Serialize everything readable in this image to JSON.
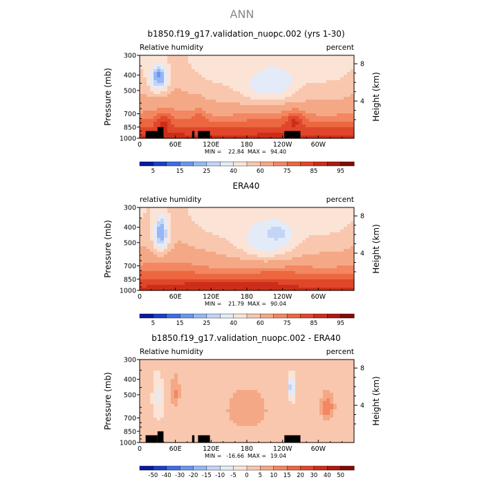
{
  "page_title": "ANN",
  "colors": {
    "land": "#000000",
    "frame": "#000000",
    "abs_scale": [
      "#0a1a9e",
      "#1a3fc8",
      "#3c6ee4",
      "#6a96ee",
      "#97b8f4",
      "#c3d5f7",
      "#e4ebf8",
      "#fbe3d6",
      "#f8c7ae",
      "#f5a886",
      "#f28762",
      "#ec6740",
      "#e0462a",
      "#cc2d18",
      "#ad1a0c",
      "#850a06"
    ],
    "diff_scale": [
      "#0a1a9e",
      "#1a3fc8",
      "#3c6ee4",
      "#6a96ee",
      "#97b8f4",
      "#c3d5f7",
      "#e4ebf8",
      "#fbe3d6",
      "#f8c7ae",
      "#f5a886",
      "#f28762",
      "#ec6740",
      "#e0462a",
      "#cc2d18",
      "#ad1a0c",
      "#850a06"
    ]
  },
  "chart_data": [
    {
      "type": "heatmap",
      "title": "b1850.f19_g17.validation_nuopc.002 (yrs 1-30)",
      "left_label": "Relative humidity",
      "right_label": "percent",
      "ylabel_left": "Pressure (mb)",
      "ylabel_right": "Height (km)",
      "x_ticks": [
        "0",
        "60E",
        "120E",
        "180",
        "120W",
        "60W"
      ],
      "x_range": [
        0,
        360
      ],
      "y_ticks": [
        "300",
        "400",
        "500",
        "700",
        "850",
        "1000"
      ],
      "y_range_mb": [
        300,
        1000
      ],
      "height_ticks": [
        "8",
        "4"
      ],
      "stats": {
        "min_label": "MIN =",
        "min_value": "22.84",
        "max_label": "MAX =",
        "max_value": "94.40"
      },
      "colorbar_labels": [
        "5",
        "15",
        "25",
        "40",
        "60",
        "75",
        "85",
        "95"
      ],
      "colorbar_levels": [
        5,
        10,
        15,
        20,
        25,
        30,
        40,
        50,
        60,
        70,
        75,
        80,
        85,
        90,
        95
      ],
      "land": [
        [
          10,
          30
        ],
        [
          30,
          40
        ],
        [
          88,
          92
        ],
        [
          98,
          118
        ],
        [
          243,
          270
        ]
      ],
      "land_tall": [
        [
          30,
          40
        ]
      ],
      "features": [
        {
          "lon": 32,
          "mb": 400,
          "rh": 8,
          "wlon": 6,
          "wmb": 40
        },
        {
          "lon": 32,
          "mb": 420,
          "rh": 20,
          "wlon": 16,
          "wmb": 90
        },
        {
          "lon": 225,
          "mb": 430,
          "rh": 22,
          "wlon": 28,
          "wmb": 70
        },
        {
          "lon": 215,
          "mb": 470,
          "rh": 35,
          "wlon": 50,
          "wmb": 130
        },
        {
          "lon": 40,
          "mb": 820,
          "rh": 88,
          "wlon": 12,
          "wmb": 90
        },
        {
          "lon": 260,
          "mb": 800,
          "rh": 86,
          "wlon": 14,
          "wmb": 110
        },
        {
          "lon": 100,
          "mb": 800,
          "rh": 80,
          "wlon": 10,
          "wmb": 150
        }
      ]
    },
    {
      "type": "heatmap",
      "title": "ERA40",
      "left_label": "relative humidity",
      "right_label": "percent",
      "ylabel_left": "Pressure (mb)",
      "ylabel_right": "Height (km)",
      "x_ticks": [
        "0",
        "60E",
        "120E",
        "180",
        "120W",
        "60W"
      ],
      "x_range": [
        0,
        360
      ],
      "y_ticks": [
        "300",
        "400",
        "500",
        "700",
        "850",
        "1000"
      ],
      "y_range_mb": [
        300,
        1000
      ],
      "height_ticks": [
        "8",
        "4"
      ],
      "stats": {
        "min_label": "MIN =",
        "min_value": "21.79",
        "max_label": "MAX =",
        "max_value": "90.04"
      },
      "colorbar_labels": [
        "5",
        "15",
        "25",
        "40",
        "60",
        "75",
        "85",
        "95"
      ],
      "colorbar_levels": [
        5,
        10,
        15,
        20,
        25,
        30,
        40,
        50,
        60,
        70,
        75,
        80,
        85,
        90,
        95
      ],
      "land": [],
      "land_tall": [],
      "features": [
        {
          "lon": 36,
          "mb": 420,
          "rh": 10,
          "wlon": 6,
          "wmb": 60
        },
        {
          "lon": 36,
          "mb": 450,
          "rh": 22,
          "wlon": 14,
          "wmb": 120
        },
        {
          "lon": 230,
          "mb": 440,
          "rh": 15,
          "wlon": 22,
          "wmb": 60
        },
        {
          "lon": 215,
          "mb": 480,
          "rh": 30,
          "wlon": 50,
          "wmb": 150
        },
        {
          "lon": 150,
          "mb": 900,
          "rh": 88,
          "wlon": 80,
          "wmb": 40
        }
      ]
    },
    {
      "type": "heatmap",
      "title": "b1850.f19_g17.validation_nuopc.002 - ERA40",
      "left_label": "Relative humidity",
      "right_label": "percent",
      "ylabel_left": "Pressure (mb)",
      "ylabel_right": "Height (km)",
      "x_ticks": [
        "0",
        "60E",
        "120E",
        "180",
        "120W",
        "60W"
      ],
      "x_range": [
        0,
        360
      ],
      "y_ticks": [
        "300",
        "400",
        "500",
        "700",
        "850",
        "1000"
      ],
      "y_range_mb": [
        300,
        1000
      ],
      "height_ticks": [
        "8",
        "4"
      ],
      "stats": {
        "min_label": "MIN =",
        "min_value": "-16.66",
        "max_label": "MAX =",
        "max_value": "19.04"
      },
      "colorbar_labels": [
        "-50",
        "-40",
        "-30",
        "-20",
        "-15",
        "-10",
        "-5",
        "0",
        "5",
        "10",
        "15",
        "20",
        "30",
        "40",
        "50"
      ],
      "colorbar_levels": [
        -50,
        -40,
        -30,
        -20,
        -15,
        -10,
        -5,
        0,
        5,
        10,
        15,
        20,
        30,
        40,
        50
      ],
      "land": [
        [
          10,
          30
        ],
        [
          30,
          40
        ],
        [
          88,
          92
        ],
        [
          98,
          118
        ],
        [
          243,
          270
        ]
      ],
      "land_tall": [
        [
          30,
          40
        ]
      ],
      "features": [
        {
          "lon": 255,
          "mb": 450,
          "rh": -15,
          "wlon": 6,
          "wmb": 80
        },
        {
          "lon": 30,
          "mb": 500,
          "rh": -8,
          "wlon": 8,
          "wmb": 150
        },
        {
          "lon": 315,
          "mb": 600,
          "rh": 14,
          "wlon": 12,
          "wmb": 120
        },
        {
          "lon": 60,
          "mb": 500,
          "rh": 10,
          "wlon": 8,
          "wmb": 120
        }
      ]
    }
  ]
}
